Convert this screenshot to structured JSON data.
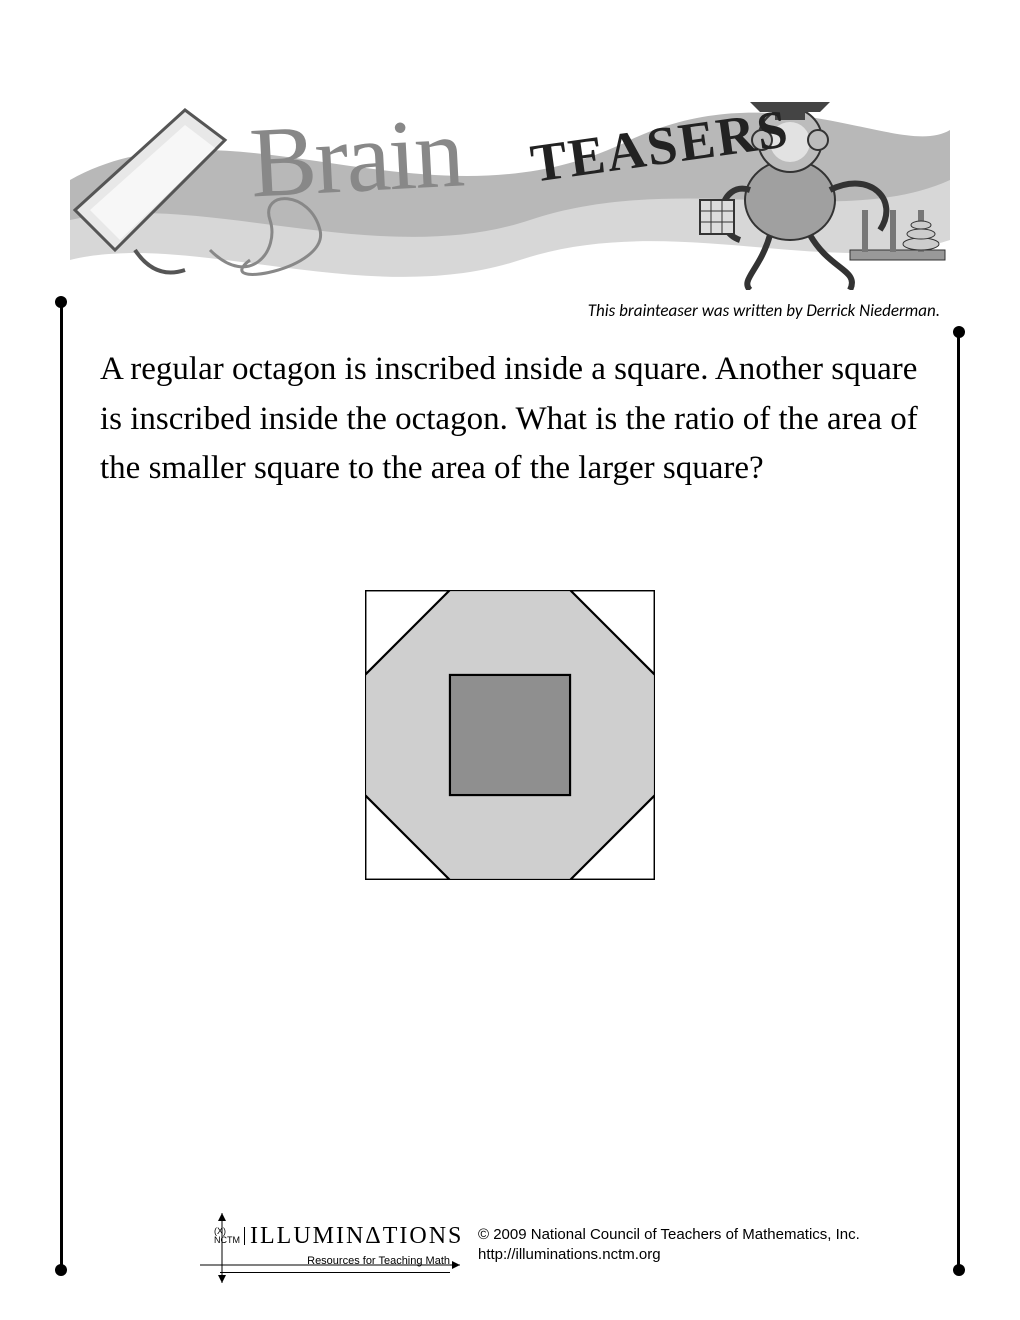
{
  "banner": {
    "script_word": "Brain",
    "block_word": "TEASERS"
  },
  "byline": "This brainteaser was written by Derrick Niederman.",
  "question_text": "A regular octagon is inscribed inside a square. Another square is inscribed inside the octagon. What is the ratio of the area of the smaller square to the area of the larger square?",
  "figure": {
    "type": "geometry-diagram",
    "outer_square": {
      "size": 200,
      "stroke": "#000000",
      "stroke_width": 2,
      "fill": "#ffffff"
    },
    "octagon": {
      "fill": "#cfcfcf",
      "stroke": "#000000",
      "stroke_width": 1.5,
      "corner_cut": 0.2929
    },
    "inner_square": {
      "fill": "#8f8f8f",
      "stroke": "#000000",
      "stroke_width": 1.5,
      "inset": 0.2929
    }
  },
  "footer": {
    "logo_main": "ILLUMINΔTIONS",
    "logo_prefix": "(X)\nNCTM",
    "logo_sub": "Resources for Teaching Math",
    "copyright_line1": "© 2009 National Council of Teachers of Mathematics, Inc.",
    "copyright_line2": "http://illuminations.nctm.org"
  },
  "colors": {
    "page_bg": "#ffffff",
    "text": "#000000",
    "banner_swirl": "#bfbfbf",
    "banner_swirl_dark": "#8a8a8a"
  }
}
